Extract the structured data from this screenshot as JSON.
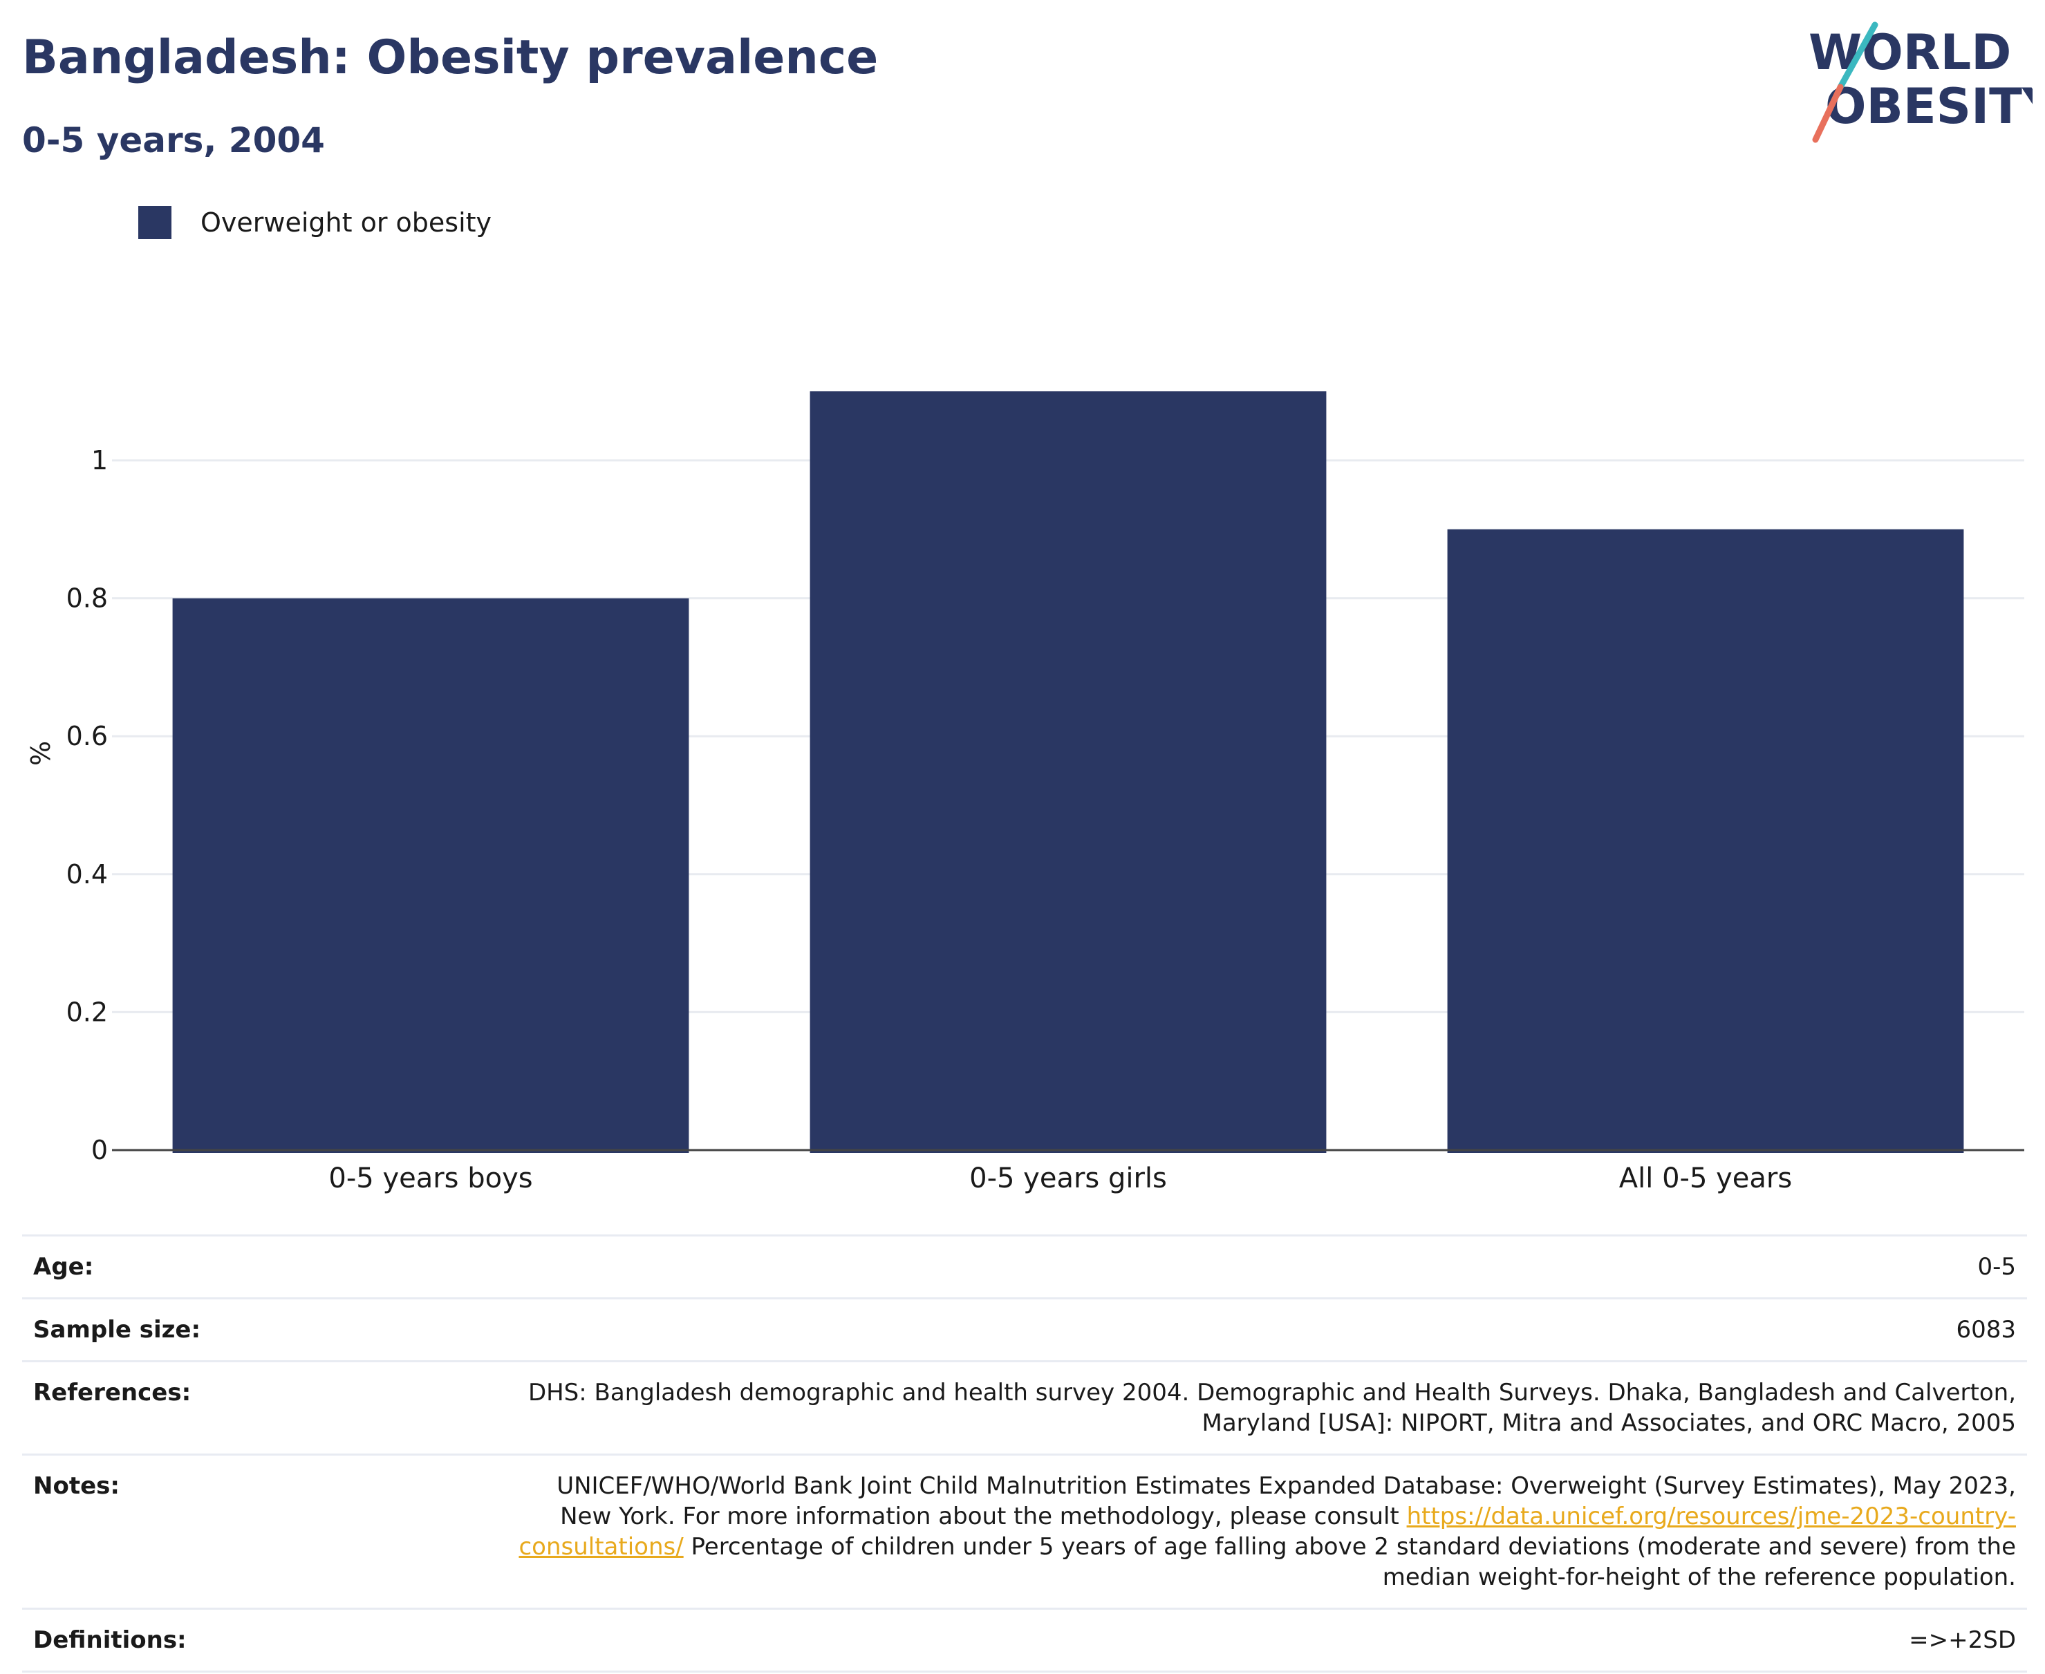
{
  "header": {
    "title": "Bangladesh: Obesity prevalence",
    "subtitle": "0-5 years, 2004"
  },
  "logo": {
    "line1": "WORLD",
    "line2": "OBESITY",
    "slash_colors": [
      "#3bb8c0",
      "#e8705c"
    ]
  },
  "legend": {
    "label": "Overweight or obesity",
    "color": "#2a3763"
  },
  "chart_data": {
    "type": "bar",
    "categories": [
      "0-5 years boys",
      "0-5 years girls",
      "All 0-5 years"
    ],
    "series": [
      {
        "name": "Overweight or obesity",
        "values": [
          0.8,
          1.1,
          0.9
        ],
        "color": "#2a3763"
      }
    ],
    "ylabel": "%",
    "xlabel": "",
    "ylim": [
      0,
      1.1
    ],
    "yticks": [
      0,
      0.2,
      0.4,
      0.6,
      0.8,
      1
    ],
    "ytick_labels": [
      "0",
      "0.2",
      "0.4",
      "0.6",
      "0.8",
      "1"
    ],
    "grid": true,
    "legend_position": "top-left"
  },
  "info": {
    "age_label": "Age:",
    "age_value": "0-5",
    "sample_label": "Sample size:",
    "sample_value": "6083",
    "references_label": "References:",
    "references_value": "DHS: Bangladesh demographic and health survey 2004. Demographic and Health Surveys. Dhaka, Bangladesh and Calverton, Maryland [USA]: NIPORT, Mitra and Associates, and ORC Macro, 2005",
    "notes_label": "Notes:",
    "notes_text1": "UNICEF/WHO/World Bank Joint Child Malnutrition Estimates Expanded Database: Overweight (Survey Estimates), May 2023, New York. For more information about the methodology, please consult ",
    "notes_link": "https://data.unicef.org/resources/jme-2023-country-consultations/",
    "notes_text2": "Percentage of children under 5 years of age falling above 2 standard deviations (moderate and severe) from the median weight-for-height of the reference population.",
    "definitions_label": "Definitions:",
    "definitions_value": "=>+2SD"
  }
}
